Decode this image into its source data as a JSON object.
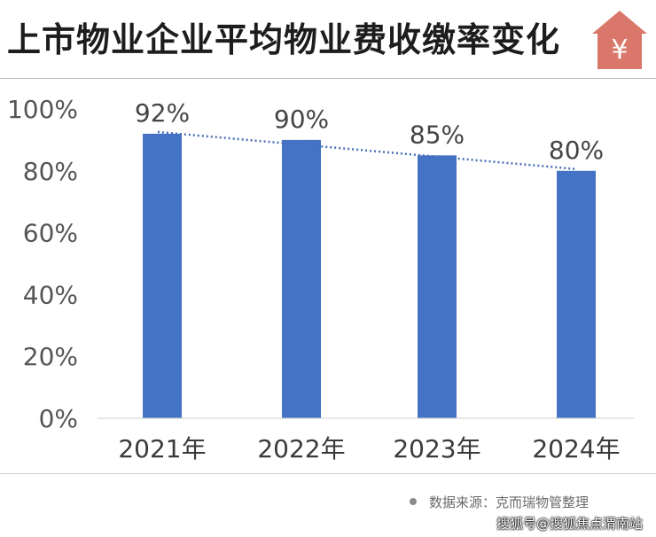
{
  "header": {
    "title": "上市物业企业平均物业费收缴率变化",
    "logo_symbol": "¥",
    "logo_color": "#d9786a"
  },
  "footer": {
    "source": "数据来源：克而瑞物管整理",
    "watermark": "搜狐号@搜狐焦点渭南站"
  },
  "chart_data": {
    "type": "bar",
    "categories": [
      "2021年",
      "2022年",
      "2023年",
      "2024年"
    ],
    "values": [
      92,
      90,
      85,
      80
    ],
    "data_labels": [
      "92%",
      "90%",
      "85%",
      "80%"
    ],
    "yticks": [
      "0%",
      "20%",
      "40%",
      "60%",
      "80%",
      "100%"
    ],
    "ylim": [
      0,
      100
    ],
    "trendline": true,
    "grid": false,
    "bar_color": "#4472c4",
    "trend_color": "#4a6fb8"
  }
}
